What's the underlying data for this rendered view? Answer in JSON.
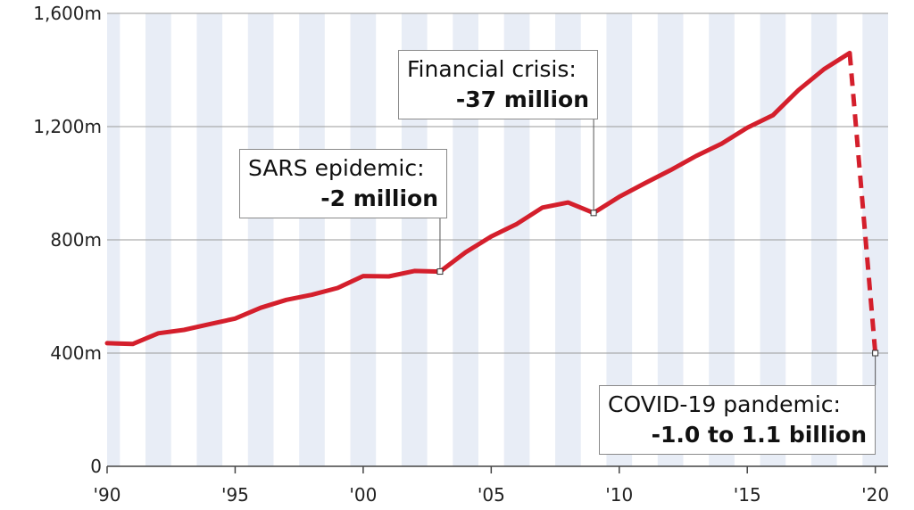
{
  "chart_data": {
    "type": "line",
    "x": [
      1990,
      1991,
      1992,
      1993,
      1994,
      1995,
      1996,
      1997,
      1998,
      1999,
      2000,
      2001,
      2002,
      2003,
      2004,
      2005,
      2006,
      2007,
      2008,
      2009,
      2010,
      2011,
      2012,
      2013,
      2014,
      2015,
      2016,
      2017,
      2018,
      2019
    ],
    "values": [
      435,
      432,
      470,
      482,
      502,
      522,
      560,
      588,
      606,
      630,
      672,
      671,
      690,
      688,
      756,
      812,
      856,
      914,
      932,
      895,
      952,
      1000,
      1046,
      1096,
      1140,
      1196,
      1240,
      1329,
      1403,
      1460
    ],
    "projection": {
      "x": [
        2019,
        2020
      ],
      "values": [
        1460,
        400
      ],
      "style": "dashed"
    },
    "ylim": [
      0,
      1600
    ],
    "xlim": [
      1990,
      2020.5
    ],
    "y_ticks": [
      0,
      400,
      800,
      1200,
      1600
    ],
    "y_tick_labels": [
      "0",
      "400m",
      "800m",
      "1,200m",
      "1,600m"
    ],
    "x_ticks": [
      1990,
      1995,
      2000,
      2005,
      2010,
      2015,
      2020
    ],
    "x_tick_labels": [
      "'90",
      "'95",
      "'00",
      "'05",
      "'10",
      "'15",
      "'20"
    ],
    "grid": "horizontal",
    "line_color": "#d41f2c",
    "band_color": "#e8edf6",
    "annotations": [
      {
        "id": "sars",
        "x": 2003,
        "y": 688,
        "line1": "SARS epidemic:",
        "line2": "-2 million"
      },
      {
        "id": "financial",
        "x": 2009,
        "y": 895,
        "line1": "Financial crisis:",
        "line2": "-37 million"
      },
      {
        "id": "covid",
        "x": 2020,
        "y": 400,
        "line1": "COVID-19 pandemic:",
        "line2": "-1.0 to 1.1 billion"
      }
    ]
  }
}
